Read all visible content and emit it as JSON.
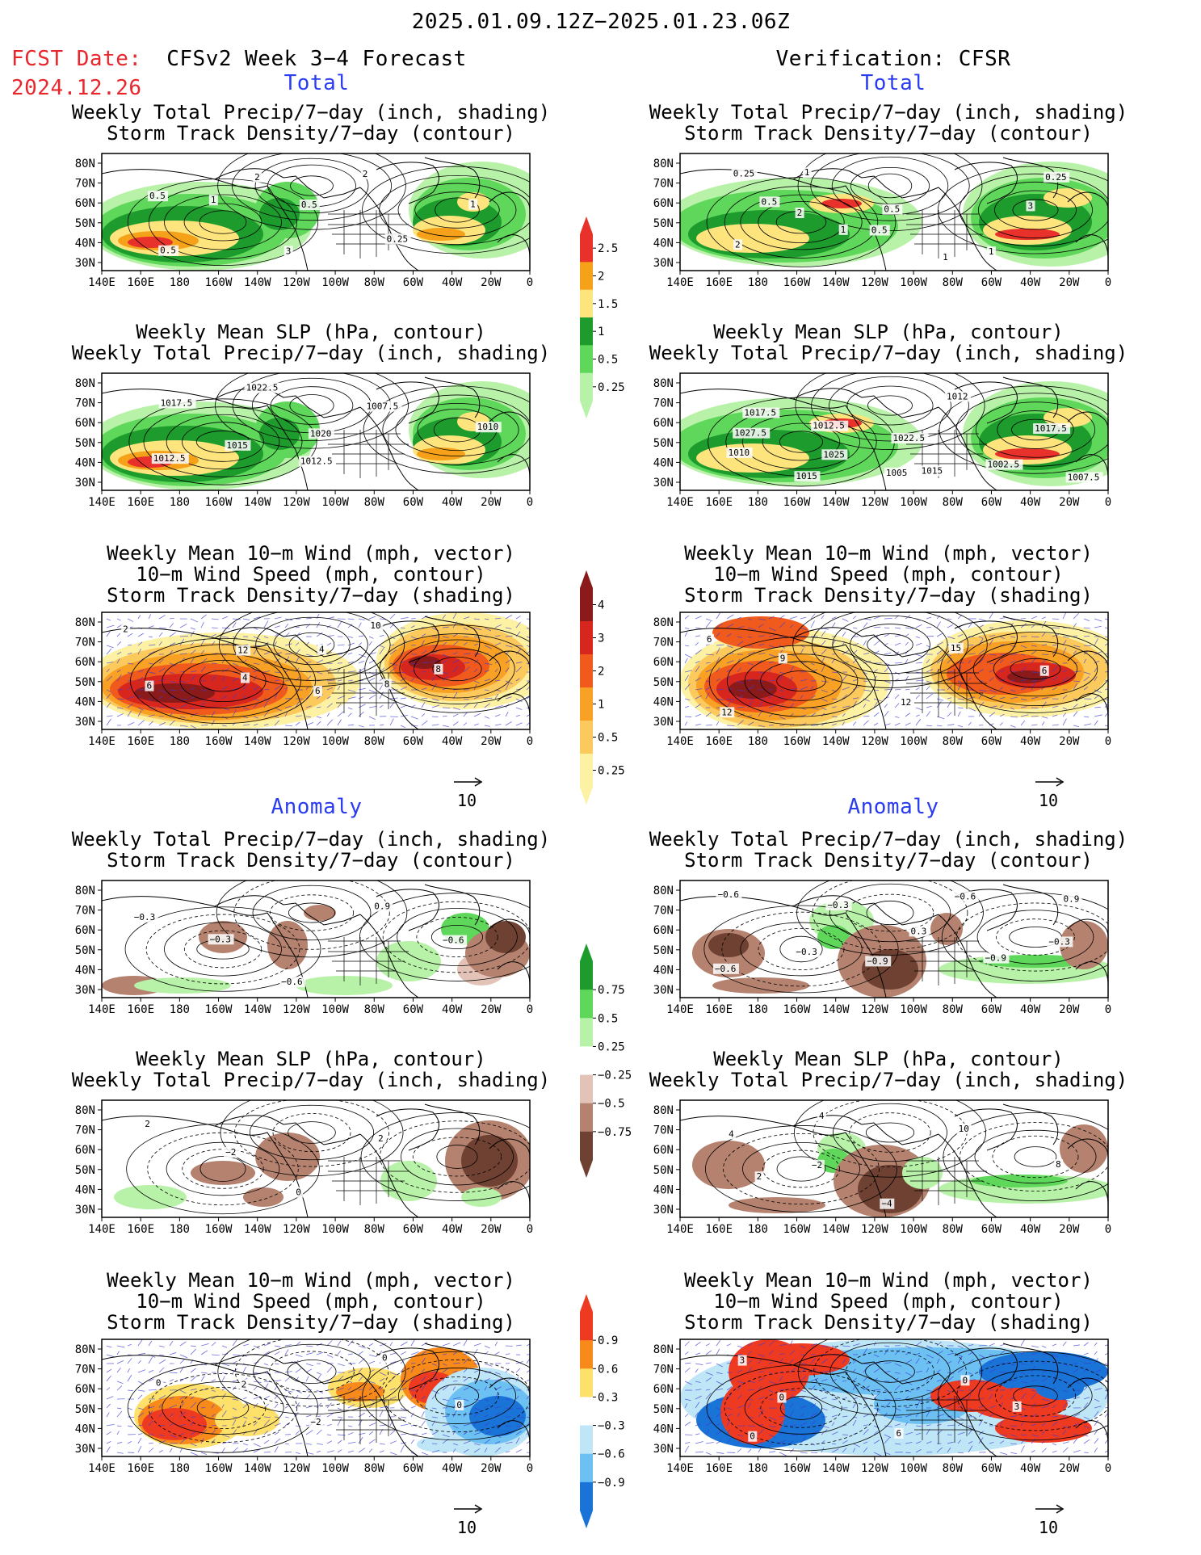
{
  "header": {
    "date_range": "2025.01.09.12Z−2025.01.23.06Z",
    "fcst_label": "FCST Date:",
    "fcst_date": "2024.12.26",
    "left_title": "CFSv2 Week 3−4 Forecast",
    "right_title": "Verification: CFSR"
  },
  "sections": {
    "total": "Total",
    "anomaly": "Anomaly"
  },
  "titles": {
    "precip_storm": [
      "Weekly Total Precip/7−day (inch, shading)",
      "Storm Track Density/7−day (contour)"
    ],
    "slp_precip": [
      "Weekly Mean SLP (hPa, contour)",
      "Weekly Total Precip/7−day (inch, shading)"
    ],
    "wind_storm": [
      "Weekly Mean 10−m Wind (mph, vector)",
      "10−m Wind Speed (mph, contour)",
      "Storm Track Density/7−day (shading)"
    ]
  },
  "axes": {
    "x_ticks": [
      "140E",
      "160E",
      "180",
      "160W",
      "140W",
      "120W",
      "100W",
      "80W",
      "60W",
      "40W",
      "20W",
      "0"
    ],
    "y_ticks": [
      "80N",
      "70N",
      "60N",
      "50N",
      "40N",
      "30N"
    ]
  },
  "colorbars": {
    "precip_total": {
      "labels": [
        "2.5",
        "2",
        "1.5",
        "1",
        "0.5",
        "0.25"
      ],
      "colors": [
        "#e8312a",
        "#f5a21a",
        "#fde47d",
        "#1d9c2d",
        "#5fd75a",
        "#b8f2a8"
      ]
    },
    "storm_total": {
      "labels": [
        "4",
        "3",
        "2",
        "1",
        "0.5",
        "0.25"
      ],
      "colors": [
        "#8b1a1a",
        "#d7261e",
        "#f05a1c",
        "#f8a124",
        "#fcc95c",
        "#fdf1a3"
      ]
    },
    "precip_anom": {
      "labels": [
        "0.75",
        "0.5",
        "0.25",
        "−0.25",
        "−0.5",
        "−0.75"
      ],
      "colors": [
        "#1d9c2d",
        "#5fd75a",
        "#b8f2a8",
        "#ffffff",
        "#e3c2b8",
        "#b4826f",
        "#6e4132"
      ]
    },
    "storm_anom": {
      "labels": [
        "0.9",
        "0.6",
        "0.3",
        "−0.3",
        "−0.6",
        "−0.9"
      ],
      "colors": [
        "#ef3a22",
        "#f88a1c",
        "#fde16b",
        "#ffffff",
        "#bfe6f7",
        "#6cc0f2",
        "#1a73d6"
      ]
    }
  },
  "vector_reference": "10",
  "contour_labels": {
    "fcst_total_precip": [
      "0.5",
      "1",
      "3",
      "2",
      "1",
      "0.5",
      "2",
      "0.5",
      "0.25"
    ],
    "cfsr_total_precip": [
      "0.25",
      "2",
      "0.5",
      "1",
      "3",
      "2",
      "1",
      "0.5",
      "1",
      "0.25",
      "0.5",
      "1"
    ],
    "fcst_total_slp": [
      "1017.5",
      "1015",
      "1012.5",
      "1007.5",
      "1010",
      "1012.5",
      "1022.5",
      "1020"
    ],
    "cfsr_total_slp": [
      "1017.5",
      "1012.5",
      "1005",
      "1012",
      "1017.5",
      "1010",
      "1015",
      "1022.5",
      "1002.5",
      "1007.5",
      "1027.5",
      "1025",
      "1015"
    ],
    "fcst_total_wind": [
      "2",
      "4",
      "6",
      "10",
      "8",
      "6",
      "12",
      "4",
      "8"
    ],
    "cfsr_total_wind": [
      "6",
      "9",
      "12",
      "15",
      "6",
      "12"
    ],
    "fcst_anom_precip": [
      "−0.3",
      "−0.3",
      "−0.6",
      "0.9",
      "−0.6"
    ],
    "cfsr_anom_precip": [
      "−0.6",
      "−0.3",
      "−0.9",
      "−0.6",
      "−0.3",
      "−0.6",
      "−0.3",
      "0.3",
      "−0.9",
      "0.9"
    ],
    "fcst_anom_slp": [
      "2",
      "−2",
      "0",
      "2"
    ],
    "cfsr_anom_slp": [
      "4",
      "−2",
      "−4",
      "10",
      "8",
      "2",
      "4"
    ],
    "fcst_anom_wind": [
      "0",
      "2",
      "−2",
      "0",
      "0"
    ],
    "cfsr_anom_wind": [
      "3",
      "0",
      "6",
      "0",
      "3",
      "0"
    ]
  }
}
